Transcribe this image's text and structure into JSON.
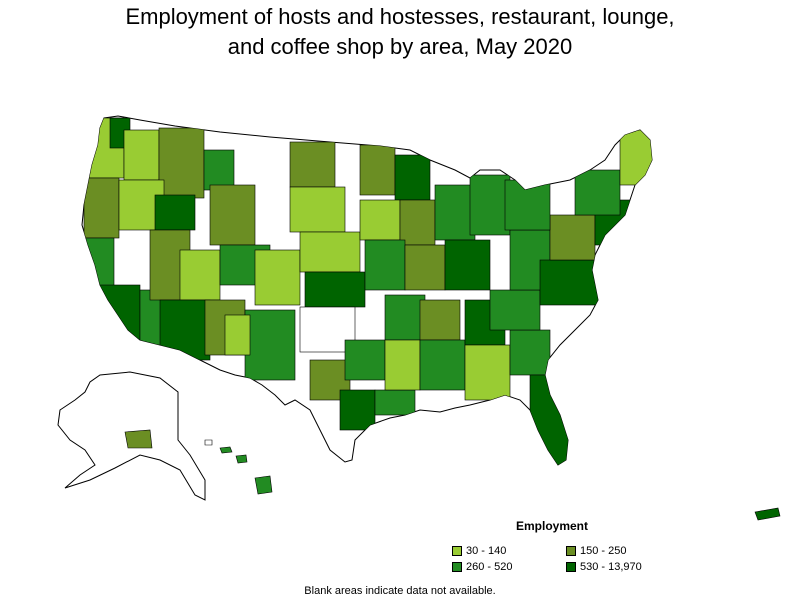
{
  "title_line1": "Employment of hosts and hostesses, restaurant, lounge,",
  "title_line2": "and coffee shop by area, May 2020",
  "legend": {
    "title": "Employment",
    "items": [
      {
        "label": "30 - 140",
        "color": "#99cc33"
      },
      {
        "label": "150 - 250",
        "color": "#6b8e23"
      },
      {
        "label": "260 - 520",
        "color": "#228b22"
      },
      {
        "label": "530 - 13,970",
        "color": "#006400"
      }
    ]
  },
  "footnote": "Blank areas indicate data not available."
}
